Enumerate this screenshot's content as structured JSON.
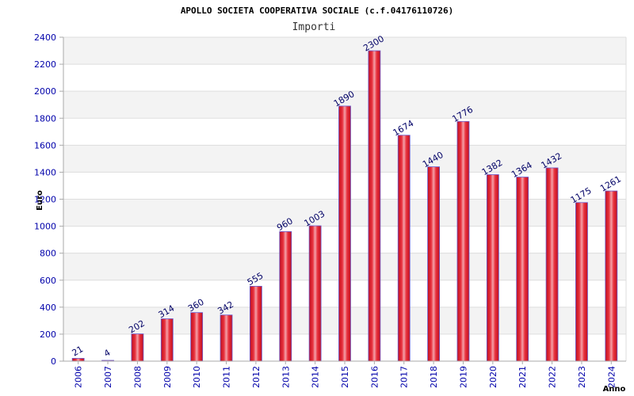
{
  "chart_data": {
    "type": "bar",
    "title": "APOLLO SOCIETA COOPERATIVA SOCIALE (c.f.04176110726)",
    "subtitle": "Importi",
    "xlabel": "Anno",
    "ylabel": "Euro",
    "categories": [
      "2006",
      "2007",
      "2008",
      "2009",
      "2010",
      "2011",
      "2012",
      "2013",
      "2014",
      "2015",
      "2016",
      "2017",
      "2018",
      "2019",
      "2020",
      "2021",
      "2022",
      "2023",
      "2024"
    ],
    "values": [
      21,
      4,
      202,
      314,
      360,
      342,
      555,
      960,
      1003,
      1890,
      2300,
      1674,
      1440,
      1776,
      1382,
      1364,
      1432,
      1175,
      1261
    ],
    "ylim": [
      0,
      2400
    ],
    "yticks": [
      0,
      200,
      400,
      600,
      800,
      1000,
      1200,
      1400,
      1600,
      1800,
      2000,
      2200,
      2400
    ],
    "grid": true,
    "legend": "none",
    "colors": {
      "bar_center": "#f4a0a8",
      "bar_mid": "#e8303c",
      "bar_edge": "#c01020",
      "bar_outline": "#6a5acd",
      "band_light": "#ffffff",
      "band_dark": "#f3f3f3",
      "gridline": "#dddddd",
      "axis": "#aaaaaa"
    }
  }
}
